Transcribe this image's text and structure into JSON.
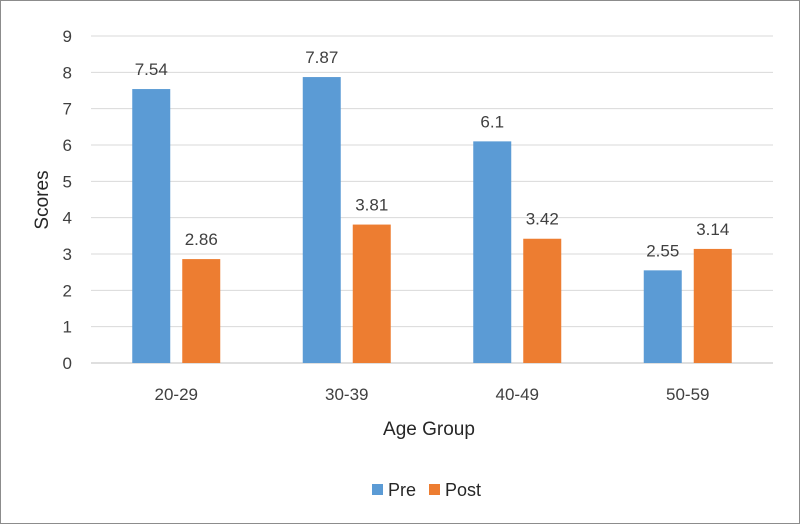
{
  "chart_data": {
    "type": "bar",
    "title": "",
    "xlabel": "Age Group",
    "ylabel": "Scores",
    "categories": [
      "20-29",
      "30-39",
      "40-49",
      "50-59"
    ],
    "series": [
      {
        "name": "Pre",
        "values": [
          7.54,
          7.87,
          6.1,
          2.55
        ],
        "color": "#5B9BD5"
      },
      {
        "name": "Post",
        "values": [
          2.86,
          3.81,
          3.42,
          3.14
        ],
        "color": "#ED7D31"
      }
    ],
    "ylim": [
      0,
      9
    ],
    "yticks": [
      0,
      1,
      2,
      3,
      4,
      5,
      6,
      7,
      8,
      9
    ],
    "grid": true,
    "legend": "bottom",
    "data_labels": true
  }
}
